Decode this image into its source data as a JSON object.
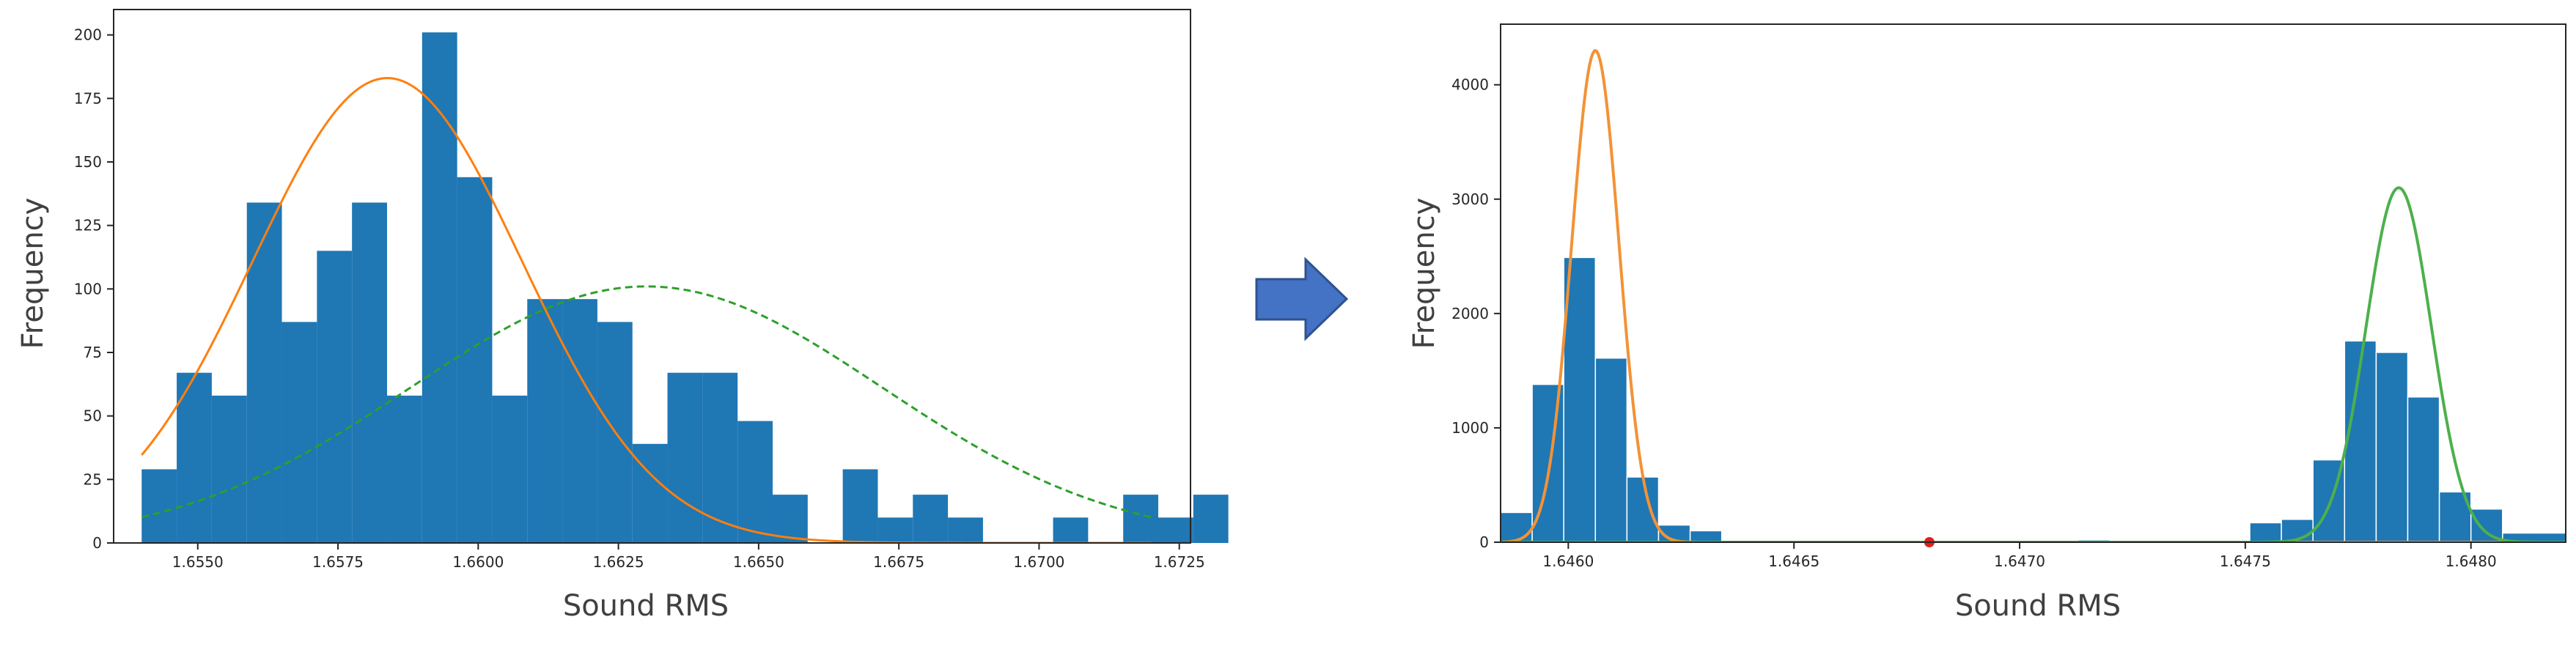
{
  "chart_data": [
    {
      "type": "bar",
      "subtype": "histogram_with_fitted_curves",
      "xlabel": "Sound RMS",
      "ylabel": "Frequency",
      "xlim": [
        1.6535,
        1.6727
      ],
      "ylim": [
        0,
        210
      ],
      "xticks": [
        1.655,
        1.6575,
        1.66,
        1.6625,
        1.665,
        1.6675,
        1.67,
        1.6725
      ],
      "xtick_labels": [
        "1.6550",
        "1.6575",
        "1.6600",
        "1.6625",
        "1.6650",
        "1.6675",
        "1.6700",
        "1.6725"
      ],
      "yticks": [
        0,
        25,
        50,
        75,
        100,
        125,
        150,
        175,
        200
      ],
      "ytick_labels": [
        "0",
        "25",
        "50",
        "75",
        "100",
        "125",
        "150",
        "175",
        "200"
      ],
      "bar_color": "#1f77b4",
      "bin_start": 1.654,
      "bin_width": 0.000625,
      "bin_counts": [
        29,
        67,
        58,
        134,
        87,
        115,
        134,
        58,
        201,
        144,
        58,
        96,
        96,
        87,
        39,
        67,
        67,
        48,
        19,
        0,
        29,
        10,
        19,
        10,
        0,
        0,
        10,
        0,
        19,
        10,
        19
      ],
      "curves": [
        {
          "color": "#ff7f0e",
          "style": "solid",
          "mean": 1.65838,
          "std": 0.0024,
          "peak": 183
        },
        {
          "color": "#2ca02c",
          "style": "dashed",
          "mean": 1.663,
          "std": 0.0042,
          "peak": 101
        }
      ],
      "grid": false
    },
    {
      "type": "bar",
      "subtype": "histogram_with_fitted_curves",
      "xlabel": "Sound RMS",
      "ylabel": "Frequency",
      "xlim": [
        1.64585,
        1.64821
      ],
      "ylim": [
        0,
        4530
      ],
      "xticks": [
        1.646,
        1.6465,
        1.647,
        1.6475,
        1.648
      ],
      "xtick_labels": [
        "1.6460",
        "1.6465",
        "1.6470",
        "1.6475",
        "1.6480"
      ],
      "yticks": [
        0,
        1000,
        2000,
        3000,
        4000
      ],
      "ytick_labels": [
        "0",
        "1000",
        "2000",
        "3000",
        "4000"
      ],
      "bar_color": "#1f77b4",
      "bins": [
        {
          "x0": 1.64585,
          "x1": 1.64592,
          "value": 260
        },
        {
          "x0": 1.64592,
          "x1": 1.64599,
          "value": 1380
        },
        {
          "x0": 1.64599,
          "x1": 1.64606,
          "value": 2490
        },
        {
          "x0": 1.64606,
          "x1": 1.64613,
          "value": 1610
        },
        {
          "x0": 1.64613,
          "x1": 1.6462,
          "value": 570
        },
        {
          "x0": 1.6462,
          "x1": 1.64627,
          "value": 150
        },
        {
          "x0": 1.64627,
          "x1": 1.64634,
          "value": 100
        },
        {
          "x0": 1.64713,
          "x1": 1.6472,
          "value": 20
        },
        {
          "x0": 1.64751,
          "x1": 1.64758,
          "value": 170
        },
        {
          "x0": 1.64758,
          "x1": 1.64765,
          "value": 200
        },
        {
          "x0": 1.64765,
          "x1": 1.64772,
          "value": 720
        },
        {
          "x0": 1.64772,
          "x1": 1.64779,
          "value": 1760
        },
        {
          "x0": 1.64779,
          "x1": 1.64786,
          "value": 1660
        },
        {
          "x0": 1.64786,
          "x1": 1.64793,
          "value": 1270
        },
        {
          "x0": 1.64793,
          "x1": 1.648,
          "value": 440
        },
        {
          "x0": 1.648,
          "x1": 1.64807,
          "value": 290
        },
        {
          "x0": 1.64807,
          "x1": 1.64821,
          "value": 80
        }
      ],
      "curves": [
        {
          "color": "#f39236",
          "style": "solid",
          "mean": 1.64606,
          "std": 5.25e-05,
          "peak": 4300
        },
        {
          "color": "#4cb04c",
          "style": "solid",
          "mean": 1.64784,
          "std": 7.25e-05,
          "peak": 3100
        }
      ],
      "marker": {
        "x": 1.6468,
        "y": 0,
        "color": "#e02020"
      },
      "grid": false
    }
  ],
  "arrow": {
    "color": "#4472c4",
    "border": "#2f528f"
  }
}
